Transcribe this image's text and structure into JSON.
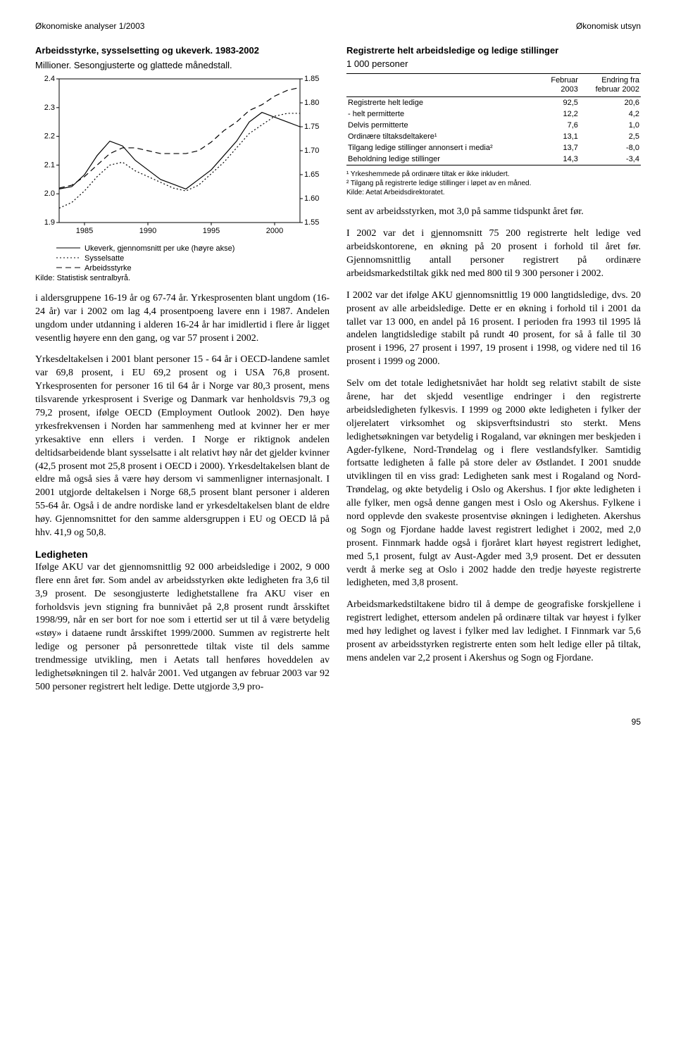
{
  "header": {
    "left": "Økonomiske analyser 1/2003",
    "right": "Økonomisk utsyn"
  },
  "chart": {
    "title": "Arbeidsstyrke, sysselsetting og ukeverk. 1983-2002",
    "subtitle": "Millioner. Sesongjusterte og glattede månedstall.",
    "x_ticks": [
      "1985",
      "1990",
      "1995",
      "2000"
    ],
    "left_axis": {
      "min": 1.9,
      "max": 2.4,
      "step": 0.1,
      "labels": [
        "2.4",
        "2.3",
        "2.2",
        "2.1",
        "2.0",
        "1.9"
      ]
    },
    "right_axis": {
      "min": 1.55,
      "max": 1.85,
      "step": 0.05,
      "labels": [
        "1.85",
        "1.80",
        "1.75",
        "1.70",
        "1.65",
        "1.60",
        "1.55"
      ]
    },
    "series": [
      {
        "name": "Ukeverk, gjennomsnitt per uke (høyre akse)",
        "axis": "right",
        "dash": "solid",
        "color": "#000000",
        "points": [
          [
            1983,
            1.62
          ],
          [
            1984,
            1.625
          ],
          [
            1985,
            1.65
          ],
          [
            1986,
            1.69
          ],
          [
            1987,
            1.72
          ],
          [
            1988,
            1.71
          ],
          [
            1989,
            1.68
          ],
          [
            1990,
            1.66
          ],
          [
            1991,
            1.64
          ],
          [
            1992,
            1.63
          ],
          [
            1993,
            1.62
          ],
          [
            1994,
            1.64
          ],
          [
            1995,
            1.66
          ],
          [
            1996,
            1.69
          ],
          [
            1997,
            1.72
          ],
          [
            1998,
            1.76
          ],
          [
            1999,
            1.78
          ],
          [
            2000,
            1.77
          ],
          [
            2001,
            1.76
          ],
          [
            2002,
            1.75
          ]
        ]
      },
      {
        "name": "Sysselsatte",
        "axis": "left",
        "dash": "dotted",
        "color": "#000000",
        "points": [
          [
            1983,
            1.95
          ],
          [
            1984,
            1.97
          ],
          [
            1985,
            2.01
          ],
          [
            1986,
            2.06
          ],
          [
            1987,
            2.1
          ],
          [
            1988,
            2.11
          ],
          [
            1989,
            2.08
          ],
          [
            1990,
            2.06
          ],
          [
            1991,
            2.04
          ],
          [
            1992,
            2.02
          ],
          [
            1993,
            2.01
          ],
          [
            1994,
            2.03
          ],
          [
            1995,
            2.07
          ],
          [
            1996,
            2.11
          ],
          [
            1997,
            2.16
          ],
          [
            1998,
            2.21
          ],
          [
            1999,
            2.24
          ],
          [
            2000,
            2.27
          ],
          [
            2001,
            2.28
          ],
          [
            2002,
            2.28
          ]
        ]
      },
      {
        "name": "Arbeidsstyrke",
        "axis": "left",
        "dash": "dashed",
        "color": "#000000",
        "points": [
          [
            1983,
            2.02
          ],
          [
            1984,
            2.03
          ],
          [
            1985,
            2.06
          ],
          [
            1986,
            2.1
          ],
          [
            1987,
            2.14
          ],
          [
            1988,
            2.16
          ],
          [
            1989,
            2.16
          ],
          [
            1990,
            2.15
          ],
          [
            1991,
            2.14
          ],
          [
            1992,
            2.14
          ],
          [
            1993,
            2.14
          ],
          [
            1994,
            2.15
          ],
          [
            1995,
            2.18
          ],
          [
            1996,
            2.22
          ],
          [
            1997,
            2.25
          ],
          [
            1998,
            2.29
          ],
          [
            1999,
            2.31
          ],
          [
            2000,
            2.34
          ],
          [
            2001,
            2.36
          ],
          [
            2002,
            2.37
          ]
        ]
      }
    ],
    "source": "Kilde: Statistisk sentralbyrå.",
    "background_color": "#ffffff",
    "border_color": "#000000"
  },
  "table": {
    "title": "Registrerte helt arbeidsledige og ledige stillinger",
    "subtitle": "1 000 personer",
    "columns": [
      "",
      "Februar\n2003",
      "Endring fra\nfebruar 2002"
    ],
    "rows": [
      [
        "Registrerte helt ledige",
        "92,5",
        "20,6"
      ],
      [
        "- helt permitterte",
        "12,2",
        "4,2"
      ],
      [
        "Delvis permitterte",
        "7,6",
        "1,0"
      ],
      [
        "Ordinære tiltaksdeltakere¹",
        "13,1",
        "2,5"
      ],
      [
        "Tilgang ledige stillinger annonsert i media²",
        "13,7",
        "-8,0"
      ],
      [
        "Beholdning ledige stillinger",
        "14,3",
        "-3,4"
      ]
    ],
    "footnotes": [
      "¹ Yrkeshemmede på ordinære tiltak er ikke inkludert.",
      "² Tilgang på registrerte ledige stillinger i løpet av en måned.",
      "Kilde: Aetat Arbeidsdirektoratet."
    ]
  },
  "left_body": {
    "p1": "i aldersgruppene 16-19 år og 67-74 år. Yrkesprosenten blant ungdom (16-24 år) var i 2002 om lag 4,4 prosentpoeng lavere enn i 1987. Andelen ungdom under utdanning i alderen 16-24 år har imidlertid i flere år ligget vesentlig høyere enn den gang, og var 57 prosent i 2002.",
    "p2": "Yrkesdeltakelsen i 2001 blant personer 15 - 64 år i OECD-landene samlet var 69,8 prosent, i EU 69,2 prosent og i USA 76,8 prosent. Yrkesprosenten for personer 16 til 64 år i Norge var 80,3 prosent, mens tilsvarende yrkesprosent i Sverige og Danmark var henholdsvis 79,3 og 79,2 prosent, ifølge OECD (Employment Outlook 2002). Den høye yrkesfrekvensen i Norden har sammenheng med at kvinner her er mer yrkesaktive enn ellers i verden. I Norge er riktignok andelen deltidsarbeidende blant sysselsatte i alt relativt høy når det gjelder kvinner (42,5 prosent mot 25,8 prosent i OECD i 2000). Yrkesdeltakelsen blant de eldre må også sies å være høy dersom vi sammenligner internasjonalt. I 2001 utgjorde deltakelsen i Norge 68,5 prosent blant personer i alderen 55-64 år. Også i de andre nordiske land er yrkesdeltakelsen blant de eldre høy. Gjennomsnittet for den samme aldersgruppen i EU og OECD lå på hhv. 41,9 og 50,8.",
    "h3": "Ledigheten",
    "p3": "Ifølge AKU var det gjennomsnittlig 92 000 arbeidsledige i 2002, 9 000 flere enn året før. Som andel av arbeidsstyrken økte ledigheten fra 3,6 til 3,9 prosent. De sesongjusterte ledighetstallene fra AKU viser en forholdsvis jevn stigning fra bunnivået på 2,8 prosent rundt årsskiftet 1998/99, når en ser bort for noe som i ettertid ser ut til å være betydelig «støy» i dataene rundt årsskiftet 1999/2000. Summen av registrerte helt ledige og personer på personrettede tiltak viste til dels samme trendmessige utvikling, men i Aetats tall henføres hoveddelen av ledighetsøkningen til 2. halvår 2001. Ved utgangen av februar 2003 var 92 500 personer registrert helt ledige. Dette utgjorde 3,9 pro-"
  },
  "right_body": {
    "p1": "sent av arbeidsstyrken, mot 3,0 på samme tidspunkt året før.",
    "p2": "I 2002 var det i gjennomsnitt 75 200 registrerte helt ledige ved arbeidskontorene, en økning på 20 prosent i forhold til året før. Gjennomsnittlig antall personer registrert på ordinære arbeidsmarkedstiltak gikk ned med 800 til 9 300 personer i 2002.",
    "p3": "I 2002 var det ifølge AKU gjennomsnittlig 19 000 langtidsledige, dvs. 20 prosent av alle arbeidsledige. Dette er en økning i forhold til i 2001 da tallet var 13 000, en andel på 16 prosent. I perioden fra 1993 til 1995 lå andelen langtidsledige stabilt på rundt 40 prosent, for så å falle til 30 prosent i 1996, 27 prosent i 1997, 19 prosent i 1998, og videre ned til 16 prosent i 1999 og 2000.",
    "p4": "Selv om det totale ledighetsnivået har holdt seg relativt stabilt de siste årene, har det skjedd vesentlige endringer i den registrerte arbeidsledigheten fylkesvis. I 1999 og 2000 økte ledigheten i fylker der oljerelatert virksomhet og skipsverftsindustri sto sterkt. Mens ledighetsøkningen var betydelig i Rogaland, var økningen mer beskjeden i Agder-fylkene, Nord-Trøndelag og i flere vestlandsfylker. Samtidig fortsatte ledigheten å falle på store deler av Østlandet. I 2001 snudde utviklingen til en viss grad: Ledigheten sank mest i Rogaland og Nord-Trøndelag, og økte betydelig i Oslo og Akershus. I fjor økte ledigheten i alle fylker, men også denne gangen mest i Oslo og Akershus. Fylkene i nord opplevde den svakeste prosentvise økningen i ledigheten. Akershus og Sogn og Fjordane hadde lavest registrert ledighet i 2002, med 2,0 prosent. Finnmark hadde også i fjoråret klart høyest registrert ledighet, med 5,1 prosent, fulgt av Aust-Agder med 3,9 prosent. Det er dessuten verdt å merke seg at Oslo i 2002 hadde den tredje høyeste registrerte ledigheten, med 3,8 prosent.",
    "p5": "Arbeidsmarkedstiltakene bidro til å dempe de geografiske forskjellene i registrert ledighet, ettersom andelen på ordinære tiltak var høyest i fylker med høy ledighet og lavest i fylker med lav ledighet. I Finnmark var 5,6 prosent av arbeidsstyrken registrerte enten som helt ledige eller på tiltak, mens andelen var 2,2 prosent i Akershus og Sogn og Fjordane."
  },
  "page_num": "95"
}
